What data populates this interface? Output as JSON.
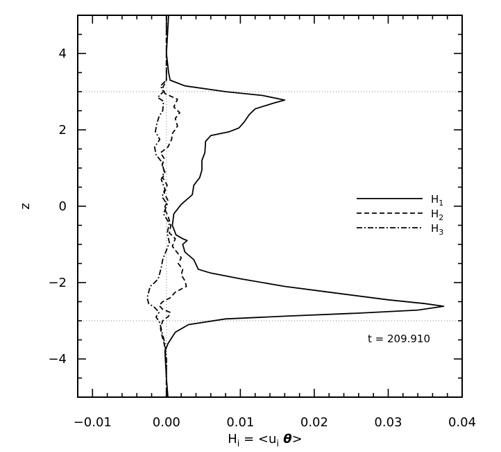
{
  "chart_data": {
    "type": "line",
    "xlabel": "H_i = <u_i θ>",
    "xlabel_parts": {
      "h": "H",
      "sub_i": "i",
      "eq": " = <u",
      "sub_i2": "i",
      "theta": " θ",
      "close": ">"
    },
    "ylabel": "z",
    "xlim": [
      -0.012,
      0.04
    ],
    "ylim": [
      -5,
      5
    ],
    "xticks": [
      -0.01,
      0.0,
      0.01,
      0.02,
      0.03,
      0.04
    ],
    "xtick_labels": [
      "−0.01",
      "0.00",
      "0.01",
      "0.02",
      "0.03",
      "0.04"
    ],
    "yticks": [
      -4,
      -2,
      0,
      2,
      4
    ],
    "ytick_labels": [
      "−4",
      "−2",
      "0",
      "2",
      "4"
    ],
    "reference_lines": {
      "horizontal_z": [
        3,
        -3
      ],
      "vertical_x": [
        0
      ],
      "style": "dotted"
    },
    "annotation": "t = 209.910",
    "legend": {
      "position": "right",
      "entries": [
        {
          "base": "H",
          "sub": "1",
          "style": "solid"
        },
        {
          "base": "H",
          "sub": "2",
          "style": "dashed"
        },
        {
          "base": "H",
          "sub": "3",
          "style": "dashdot"
        }
      ]
    },
    "series": [
      {
        "name": "H1",
        "style": "solid",
        "points": [
          [
            0.0003,
            5.0
          ],
          [
            0.0,
            4.0
          ],
          [
            0.0003,
            3.5
          ],
          [
            0.0005,
            3.3
          ],
          [
            0.0025,
            3.15
          ],
          [
            0.008,
            3.0
          ],
          [
            0.013,
            2.9
          ],
          [
            0.016,
            2.78
          ],
          [
            0.0145,
            2.7
          ],
          [
            0.012,
            2.55
          ],
          [
            0.0112,
            2.4
          ],
          [
            0.0105,
            2.2
          ],
          [
            0.0098,
            2.05
          ],
          [
            0.0085,
            1.95
          ],
          [
            0.006,
            1.85
          ],
          [
            0.0053,
            1.7
          ],
          [
            0.0052,
            1.4
          ],
          [
            0.0048,
            1.2
          ],
          [
            0.0048,
            0.95
          ],
          [
            0.0045,
            0.75
          ],
          [
            0.0037,
            0.55
          ],
          [
            0.0035,
            0.3
          ],
          [
            0.002,
            0.05
          ],
          [
            0.001,
            -0.2
          ],
          [
            0.0008,
            -0.5
          ],
          [
            0.0013,
            -0.75
          ],
          [
            0.0022,
            -0.85
          ],
          [
            0.0028,
            -0.9
          ],
          [
            0.0022,
            -1.0
          ],
          [
            0.0025,
            -1.2
          ],
          [
            0.0037,
            -1.4
          ],
          [
            0.0043,
            -1.65
          ],
          [
            0.006,
            -1.75
          ],
          [
            0.01,
            -1.9
          ],
          [
            0.016,
            -2.1
          ],
          [
            0.022,
            -2.25
          ],
          [
            0.03,
            -2.45
          ],
          [
            0.035,
            -2.55
          ],
          [
            0.0375,
            -2.62
          ],
          [
            0.034,
            -2.72
          ],
          [
            0.026,
            -2.8
          ],
          [
            0.016,
            -2.88
          ],
          [
            0.008,
            -2.95
          ],
          [
            0.003,
            -3.1
          ],
          [
            0.0012,
            -3.3
          ],
          [
            0.0002,
            -3.6
          ],
          [
            -0.0002,
            -3.8
          ],
          [
            0.0,
            -4.5
          ],
          [
            0.0002,
            -5.0
          ]
        ]
      },
      {
        "name": "H2",
        "style": "dashed",
        "points": [
          [
            0.0,
            5.0
          ],
          [
            0.0,
            3.3
          ],
          [
            -0.0005,
            3.1
          ],
          [
            -0.0002,
            2.95
          ],
          [
            0.0015,
            2.8
          ],
          [
            0.001,
            2.6
          ],
          [
            0.0018,
            2.45
          ],
          [
            0.0012,
            2.3
          ],
          [
            0.0015,
            2.1
          ],
          [
            0.0008,
            1.9
          ],
          [
            0.0007,
            1.75
          ],
          [
            0.0002,
            1.55
          ],
          [
            -0.0008,
            1.4
          ],
          [
            -0.0003,
            1.25
          ],
          [
            -0.0006,
            1.05
          ],
          [
            -0.0002,
            0.9
          ],
          [
            -0.0005,
            0.75
          ],
          [
            0.0001,
            0.55
          ],
          [
            -0.0003,
            0.35
          ],
          [
            0.0002,
            0.15
          ],
          [
            -0.0003,
            -0.05
          ],
          [
            0.0002,
            -0.25
          ],
          [
            0.0006,
            -0.5
          ],
          [
            0.0004,
            -0.7
          ],
          [
            0.0012,
            -0.85
          ],
          [
            0.0008,
            -1.05
          ],
          [
            0.0014,
            -1.2
          ],
          [
            0.002,
            -1.35
          ],
          [
            0.0016,
            -1.5
          ],
          [
            0.0022,
            -1.65
          ],
          [
            0.002,
            -1.8
          ],
          [
            0.0025,
            -1.95
          ],
          [
            0.0027,
            -2.1
          ],
          [
            0.0012,
            -2.25
          ],
          [
            0.0005,
            -2.4
          ],
          [
            -0.0005,
            -2.5
          ],
          [
            -0.001,
            -2.6
          ],
          [
            -0.0005,
            -2.7
          ],
          [
            0.0005,
            -2.78
          ],
          [
            0.0003,
            -2.88
          ],
          [
            -0.0005,
            -3.0
          ],
          [
            -0.0008,
            -3.2
          ],
          [
            -0.0006,
            -3.4
          ],
          [
            -0.0003,
            -3.6
          ],
          [
            0.0,
            -4.0
          ],
          [
            0.0,
            -5.0
          ]
        ]
      },
      {
        "name": "H3",
        "style": "dashdot",
        "points": [
          [
            0.0,
            5.0
          ],
          [
            0.0,
            3.3
          ],
          [
            -0.0008,
            3.15
          ],
          [
            -0.0004,
            3.0
          ],
          [
            -0.0012,
            2.85
          ],
          [
            -0.0004,
            2.75
          ],
          [
            -0.0005,
            2.5
          ],
          [
            -0.001,
            2.35
          ],
          [
            -0.0013,
            2.15
          ],
          [
            -0.0015,
            1.95
          ],
          [
            -0.0009,
            1.75
          ],
          [
            -0.0016,
            1.55
          ],
          [
            -0.0014,
            1.35
          ],
          [
            -0.0006,
            1.15
          ],
          [
            -0.0003,
            0.9
          ],
          [
            -0.0007,
            0.7
          ],
          [
            -0.0002,
            0.45
          ],
          [
            -0.0006,
            0.25
          ],
          [
            0.0001,
            0.05
          ],
          [
            -0.0004,
            -0.2
          ],
          [
            0.0004,
            -0.45
          ],
          [
            0.0001,
            -0.7
          ],
          [
            0.0004,
            -0.95
          ],
          [
            -0.0001,
            -1.2
          ],
          [
            -0.0005,
            -1.4
          ],
          [
            -0.0007,
            -1.6
          ],
          [
            -0.0009,
            -1.75
          ],
          [
            -0.0011,
            -1.9
          ],
          [
            -0.0016,
            -2.0
          ],
          [
            -0.0022,
            -2.1
          ],
          [
            -0.0024,
            -2.25
          ],
          [
            -0.0026,
            -2.4
          ],
          [
            -0.0024,
            -2.55
          ],
          [
            -0.0016,
            -2.65
          ],
          [
            -0.001,
            -2.78
          ],
          [
            -0.0014,
            -2.9
          ],
          [
            -0.0009,
            -3.05
          ],
          [
            -0.0006,
            -3.3
          ],
          [
            -0.0002,
            -3.6
          ],
          [
            0.0,
            -4.0
          ],
          [
            0.0,
            -5.0
          ]
        ]
      }
    ]
  }
}
